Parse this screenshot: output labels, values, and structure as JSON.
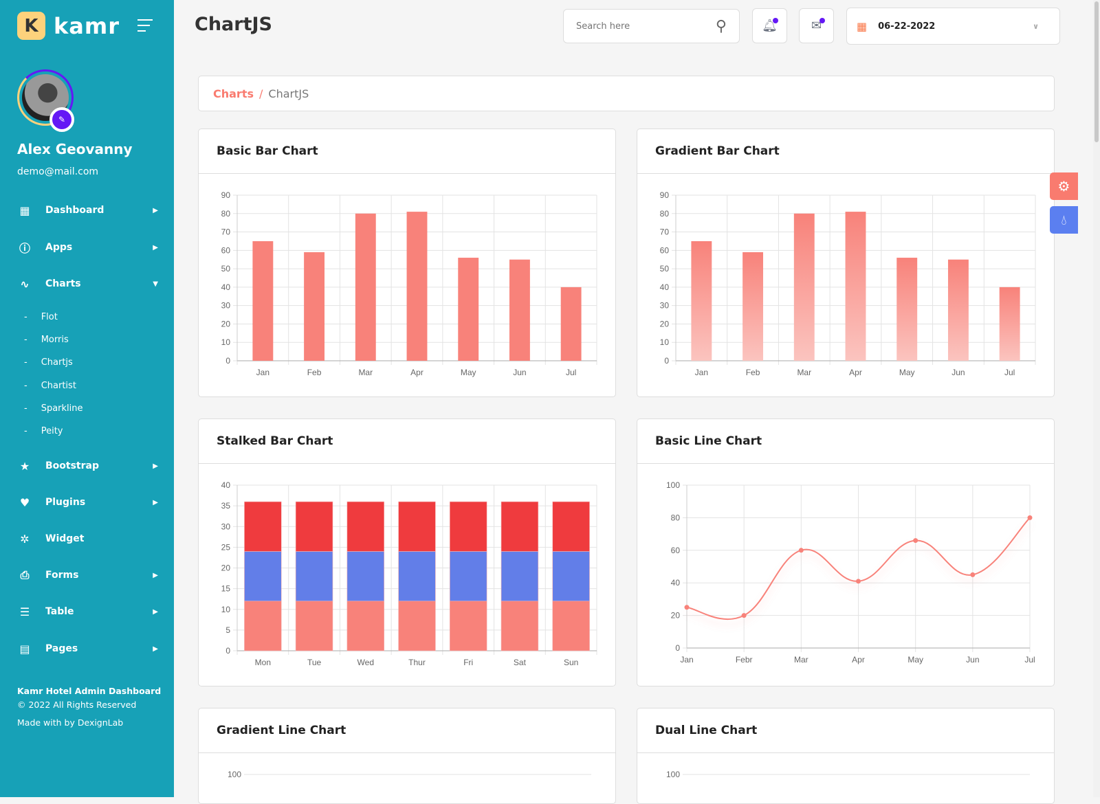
{
  "brand": {
    "name": "kamr",
    "mark": "K"
  },
  "user": {
    "name": "Alex Geovanny",
    "email": "demo@mail.com"
  },
  "nav": [
    {
      "label": "Dashboard",
      "icon": "dashboard-icon",
      "glyph": "▦",
      "arrow": "▶"
    },
    {
      "label": "Apps",
      "icon": "apps-icon",
      "glyph": "ⓘ",
      "arrow": "▶"
    },
    {
      "label": "Charts",
      "icon": "chart-icon",
      "glyph": "∿",
      "arrow": "▼"
    },
    {
      "label": "Bootstrap",
      "icon": "star-icon",
      "glyph": "★",
      "arrow": "▶"
    },
    {
      "label": "Plugins",
      "icon": "heart-icon",
      "glyph": "♥",
      "arrow": "▶"
    },
    {
      "label": "Widget",
      "icon": "widget-icon",
      "glyph": "✲",
      "arrow": ""
    },
    {
      "label": "Forms",
      "icon": "printer-icon",
      "glyph": "⎙",
      "arrow": "▶"
    },
    {
      "label": "Table",
      "icon": "table-icon",
      "glyph": "☰",
      "arrow": "▶"
    },
    {
      "label": "Pages",
      "icon": "pages-icon",
      "glyph": "▤",
      "arrow": "▶"
    }
  ],
  "charts_submenu": [
    "Flot",
    "Morris",
    "Chartjs",
    "Chartist",
    "Sparkline",
    "Peity"
  ],
  "footer": {
    "title": "Kamr Hotel Admin Dashboard",
    "copyright": "© 2022 All Rights Reserved",
    "made": "Made with by DexignLab"
  },
  "header": {
    "title": "ChartJS",
    "search_placeholder": "Search here",
    "date": "06-22-2022"
  },
  "breadcrumb": {
    "parent": "Charts",
    "separator": "/",
    "current": "ChartJS"
  },
  "colors": {
    "sidebar": "#17a1b7",
    "accent": "#f97b6f",
    "purple": "#6418f5",
    "bar": "#f8827a",
    "stack_red": "#ef3b3e",
    "stack_blue": "#627ee8"
  },
  "chart_data": [
    {
      "title": "Basic Bar Chart",
      "type": "bar",
      "categories": [
        "Jan",
        "Feb",
        "Mar",
        "Apr",
        "May",
        "Jun",
        "Jul"
      ],
      "values": [
        65,
        59,
        80,
        81,
        56,
        55,
        40
      ],
      "ylim": [
        0,
        90
      ],
      "yticks": [
        0,
        10,
        20,
        30,
        40,
        50,
        60,
        70,
        80,
        90
      ],
      "grid": true
    },
    {
      "title": "Gradient Bar Chart",
      "type": "bar",
      "gradient": true,
      "categories": [
        "Jan",
        "Feb",
        "Mar",
        "Apr",
        "May",
        "Jun",
        "Jul"
      ],
      "values": [
        65,
        59,
        80,
        81,
        56,
        55,
        40
      ],
      "ylim": [
        0,
        90
      ],
      "yticks": [
        0,
        10,
        20,
        30,
        40,
        50,
        60,
        70,
        80,
        90
      ],
      "grid": true
    },
    {
      "title": "Stalked Bar Chart",
      "type": "bar",
      "stacked": true,
      "categories": [
        "Mon",
        "Tue",
        "Wed",
        "Thur",
        "Fri",
        "Sat",
        "Sun"
      ],
      "series": [
        {
          "values": [
            12,
            12,
            12,
            12,
            12,
            12,
            12
          ],
          "color": "#f8827a"
        },
        {
          "values": [
            12,
            12,
            12,
            12,
            12,
            12,
            12
          ],
          "color": "#627ee8"
        },
        {
          "values": [
            12,
            12,
            12,
            12,
            12,
            12,
            12
          ],
          "color": "#ef3b3e"
        }
      ],
      "ylim": [
        0,
        40
      ],
      "yticks": [
        0,
        5,
        10,
        15,
        20,
        25,
        30,
        35,
        40
      ],
      "grid": true
    },
    {
      "title": "Basic Line Chart",
      "type": "line",
      "categories": [
        "Jan",
        "Febr",
        "Mar",
        "Apr",
        "May",
        "Jun",
        "Jul"
      ],
      "values": [
        25,
        20,
        60,
        41,
        66,
        45,
        80
      ],
      "ylim": [
        0,
        100
      ],
      "yticks": [
        0,
        20,
        40,
        60,
        80,
        100
      ],
      "grid": true
    },
    {
      "title": "Gradient Line Chart",
      "type": "line",
      "ylim": [
        0,
        100
      ],
      "yticks": [
        100
      ]
    },
    {
      "title": "Dual Line Chart",
      "type": "line",
      "ylim": [
        0,
        100
      ],
      "yticks": [
        100
      ]
    }
  ]
}
